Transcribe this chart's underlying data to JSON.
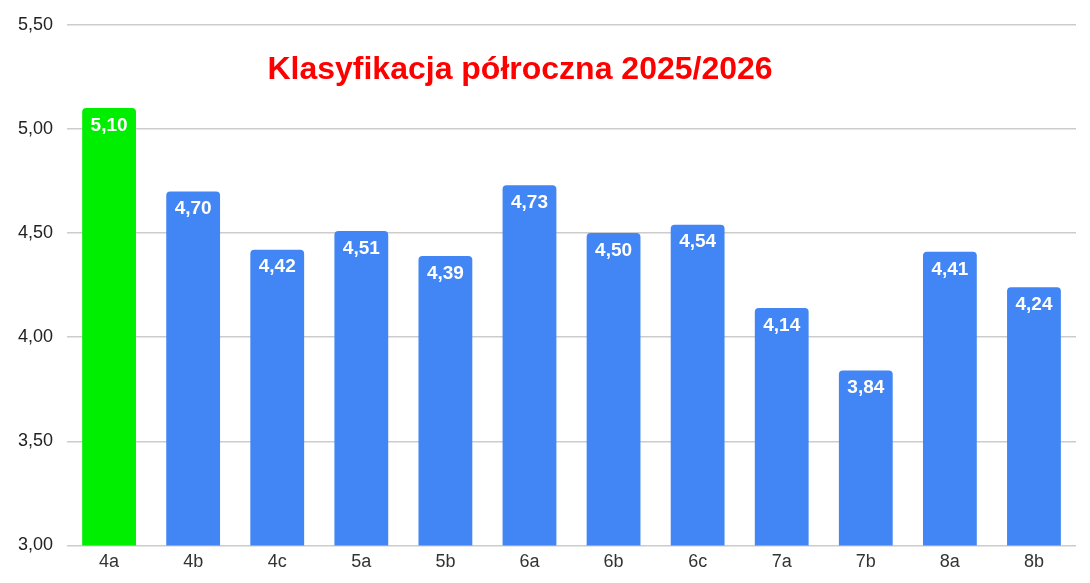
{
  "chart_data": {
    "type": "bar",
    "title": "Klasyfikacja półroczna 2025/2026",
    "categories": [
      "4a",
      "4b",
      "4c",
      "5a",
      "5b",
      "6a",
      "6b",
      "6c",
      "7a",
      "7b",
      "8a",
      "8b"
    ],
    "values": [
      5.1,
      4.7,
      4.42,
      4.51,
      4.39,
      4.73,
      4.5,
      4.54,
      4.14,
      3.84,
      4.41,
      4.24
    ],
    "value_labels": [
      "5,10",
      "4,70",
      "4,42",
      "4,51",
      "4,39",
      "4,73",
      "4,50",
      "4,54",
      "4,14",
      "3,84",
      "4,41",
      "4,24"
    ],
    "colors": [
      "#00ee00",
      "#4285f4",
      "#4285f4",
      "#4285f4",
      "#4285f4",
      "#4285f4",
      "#4285f4",
      "#4285f4",
      "#4285f4",
      "#4285f4",
      "#4285f4",
      "#4285f4"
    ],
    "ylim": [
      3,
      5.5
    ],
    "yticks": [
      {
        "value": 3,
        "label": "3,00"
      },
      {
        "value": 3.5,
        "label": "3,50"
      },
      {
        "value": 4,
        "label": "4,00"
      },
      {
        "value": 4.5,
        "label": "4,50"
      },
      {
        "value": 5,
        "label": "5,00"
      },
      {
        "value": 5.5,
        "label": "5,50"
      }
    ],
    "grid": "y",
    "legend": false
  }
}
